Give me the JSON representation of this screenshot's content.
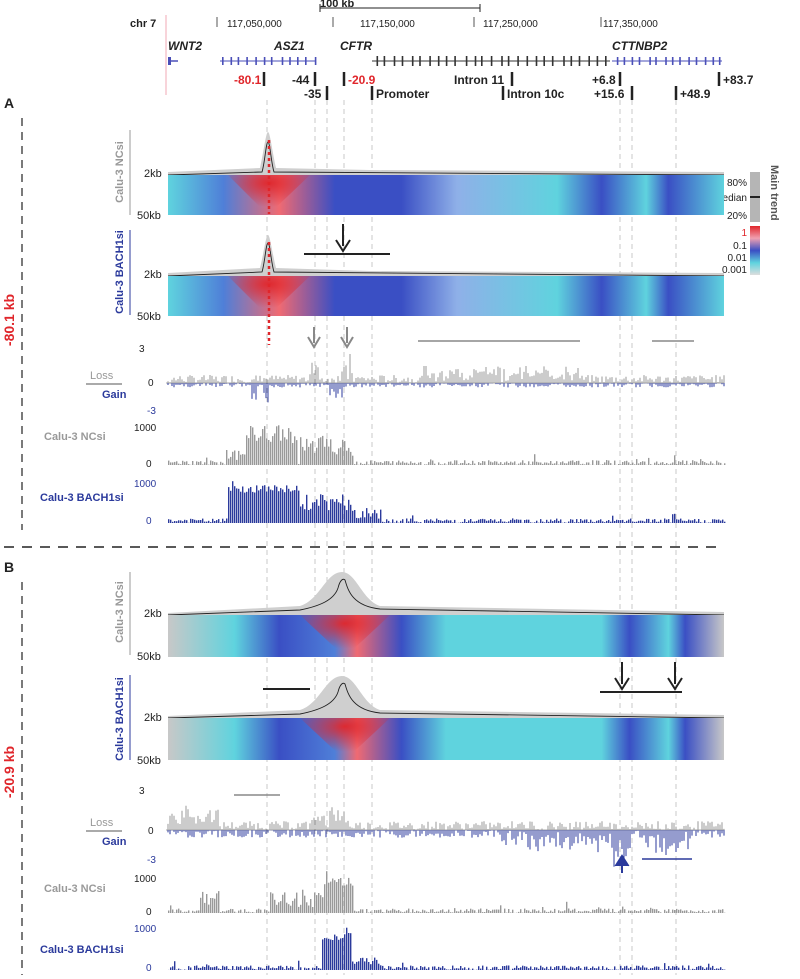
{
  "colors": {
    "grey": "#999999",
    "dark_grey": "#777777",
    "blue": "#2b3a9c",
    "red": "#e0262b",
    "black": "#222222",
    "cyan": "#5fd3de",
    "mid_blue": "#3a4fc4",
    "light_blue": "#8fb0e8",
    "pink": "#f06a72",
    "gene_blue": "#4a4fb8",
    "pink_line": "#f2a9b4"
  },
  "header": {
    "scale_label": "100 kb",
    "chrom": "chr 7",
    "coords": [
      "117,050,000",
      "117,150,000",
      "117,250,000",
      "117,350,000"
    ],
    "genes": [
      "WNT2",
      "ASZ1",
      "CFTR",
      "CTTNBP2"
    ]
  },
  "elements": {
    "upper": [
      {
        "label": "-80.1",
        "red": true
      },
      {
        "label": "-44",
        "red": false
      },
      {
        "label": "-20.9",
        "red": true
      },
      {
        "label": "Intron 11",
        "red": false
      },
      {
        "label": "+6.8",
        "red": false
      },
      {
        "label": "+83.7",
        "red": false
      }
    ],
    "lower": [
      {
        "label": "-35"
      },
      {
        "label": "Promoter"
      },
      {
        "label": "Intron 10c"
      },
      {
        "label": "+15.6"
      },
      {
        "label": "+48.9"
      }
    ]
  },
  "legend": {
    "title": "Main trend",
    "p80": "80%",
    "median": "median",
    "p20": "20%",
    "scale": [
      "1",
      "0.1",
      "0.01",
      "0.001"
    ]
  },
  "panels": [
    {
      "letter": "A",
      "viewpoint": "-80.1 kb",
      "track1_label": "Calu-3 NCsi",
      "track2_label": "Calu-3 BACH1si",
      "y_2kb": "2kb",
      "y_50kb": "50kb",
      "diff": {
        "ticks": [
          "3",
          "0",
          "-3"
        ],
        "loss": "Loss",
        "gain": "Gain"
      },
      "nc_bar": {
        "label": "Calu-3 NCsi",
        "ticks": [
          "1000",
          "0"
        ]
      },
      "bach_bar": {
        "label": "Calu-3 BACH1si",
        "ticks": [
          "1000",
          "0"
        ]
      }
    },
    {
      "letter": "B",
      "viewpoint": "-20.9 kb",
      "track1_label": "Calu-3 NCsi",
      "track2_label": "Calu-3 BACH1si",
      "y_2kb": "2kb",
      "y_50kb": "50kb",
      "diff": {
        "ticks": [
          "3",
          "0",
          "-3"
        ],
        "loss": "Loss",
        "gain": "Gain"
      },
      "nc_bar": {
        "label": "Calu-3 NCsi",
        "ticks": [
          "1000",
          "0"
        ]
      },
      "bach_bar": {
        "label": "Calu-3 BACH1si",
        "ticks": [
          "1000",
          "0"
        ]
      }
    }
  ]
}
